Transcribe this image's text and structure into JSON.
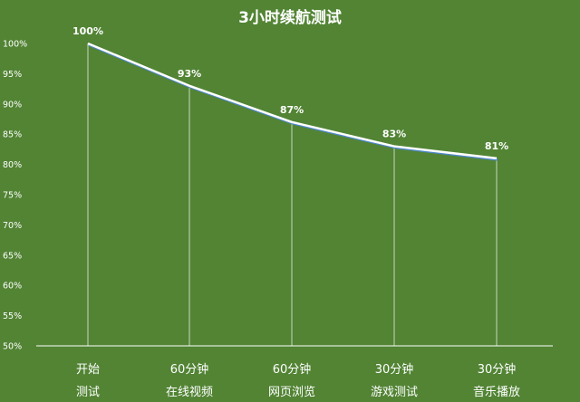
{
  "chart_data": {
    "type": "line",
    "title": "3小时续航测试",
    "categories": [
      [
        "开始",
        "测试"
      ],
      [
        "60分钟",
        "在线视频"
      ],
      [
        "60分钟",
        "网页浏览"
      ],
      [
        "30分钟",
        "游戏测试"
      ],
      [
        "30分钟",
        "音乐播放"
      ]
    ],
    "values": [
      100,
      93,
      87,
      83,
      81
    ],
    "data_labels": [
      "100%",
      "93%",
      "87%",
      "83%",
      "81%"
    ],
    "yticks": [
      "50%",
      "55%",
      "60%",
      "65%",
      "70%",
      "75%",
      "80%",
      "85%",
      "90%",
      "95%",
      "100%"
    ],
    "ylim": [
      50,
      100
    ],
    "grid": false,
    "drop_lines": true,
    "colors": {
      "background": "#528434",
      "line": "#ffffff",
      "line_shadow": "#4f87c7",
      "drop_line": "#ffffff",
      "text": "#ffffff"
    }
  }
}
